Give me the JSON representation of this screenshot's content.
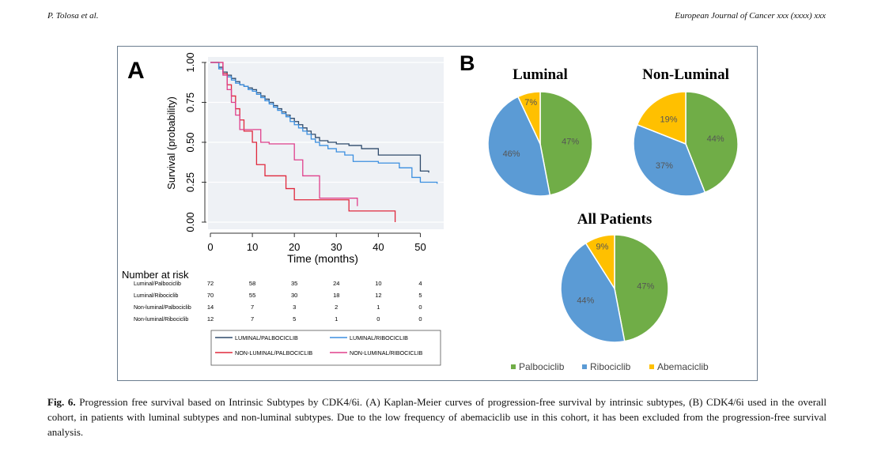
{
  "header": {
    "author": "P. Tolosa et al.",
    "journal": "European Journal of Cancer xxx (xxxx) xxx"
  },
  "panel_a": {
    "label": "A",
    "ylabel": "Survival (probability)",
    "xlabel": "Time (months)",
    "yticks": [
      "0.00",
      "0.25",
      "0.50",
      "0.75",
      "1.00"
    ],
    "xticks": [
      "0",
      "10",
      "20",
      "30",
      "40",
      "50"
    ],
    "risk_title": "Number at risk",
    "risk_rows": [
      {
        "label": "Luminal/Palbociclib",
        "values": [
          "72",
          "58",
          "35",
          "24",
          "10",
          "4"
        ]
      },
      {
        "label": "Luminal/Ribociclib",
        "values": [
          "70",
          "55",
          "30",
          "18",
          "12",
          "5"
        ]
      },
      {
        "label": "Non-luminal/Palbociclib",
        "values": [
          "14",
          "7",
          "3",
          "2",
          "1",
          "0"
        ]
      },
      {
        "label": "Non-luminal/Ribociclib",
        "values": [
          "12",
          "7",
          "5",
          "1",
          "0",
          "0"
        ]
      }
    ],
    "legend": [
      {
        "label": "LUMINAL/PALBOCICLIB",
        "color": "#2e4a6b"
      },
      {
        "label": "LUMINAL/RIBOCICLIB",
        "color": "#3b8fe0"
      },
      {
        "label": "NON-LUMINAL/PALBOCICLIB",
        "color": "#e0283c"
      },
      {
        "label": "NON-LUMINAL/RIBOCICLIB",
        "color": "#e0408c"
      }
    ]
  },
  "panel_b": {
    "label": "B",
    "colors": {
      "palbociclib": "#70ad47",
      "ribociclib": "#5b9bd5",
      "abemaciclib": "#ffc000"
    },
    "legend": [
      "Palbociclib",
      "Ribociclib",
      "Abemaciclib"
    ],
    "pies": [
      {
        "title": "Luminal",
        "slices": [
          {
            "label": "47%",
            "value": 47
          },
          {
            "label": "46%",
            "value": 46
          },
          {
            "label": "7%",
            "value": 7
          }
        ]
      },
      {
        "title": "Non-Luminal",
        "slices": [
          {
            "label": "44%",
            "value": 44
          },
          {
            "label": "37%",
            "value": 37
          },
          {
            "label": "19%",
            "value": 19
          }
        ]
      },
      {
        "title": "All Patients",
        "slices": [
          {
            "label": "47%",
            "value": 47
          },
          {
            "label": "44%",
            "value": 44
          },
          {
            "label": "9%",
            "value": 9
          }
        ]
      }
    ]
  },
  "chart_data": [
    {
      "type": "line",
      "xlabel": "Time (months)",
      "ylabel": "Survival (probability)",
      "xlim": [
        0,
        55
      ],
      "ylim": [
        0,
        1
      ],
      "series": [
        {
          "name": "LUMINAL/PALBOCICLIB",
          "x": [
            0,
            2,
            3,
            4,
            5,
            6,
            7,
            8,
            9,
            10,
            11,
            12,
            13,
            14,
            15,
            16,
            17,
            18,
            19,
            20,
            21,
            22,
            23,
            24,
            25,
            26,
            28,
            30,
            33,
            36,
            40,
            50,
            52
          ],
          "y": [
            1.0,
            0.97,
            0.94,
            0.92,
            0.9,
            0.88,
            0.86,
            0.85,
            0.84,
            0.83,
            0.81,
            0.79,
            0.77,
            0.75,
            0.73,
            0.71,
            0.69,
            0.67,
            0.65,
            0.63,
            0.61,
            0.59,
            0.57,
            0.55,
            0.53,
            0.51,
            0.5,
            0.49,
            0.48,
            0.46,
            0.42,
            0.32,
            0.31
          ]
        },
        {
          "name": "LUMINAL/RIBOCICLIB",
          "x": [
            0,
            2,
            3,
            4,
            5,
            6,
            7,
            8,
            9,
            10,
            11,
            12,
            13,
            14,
            15,
            16,
            17,
            18,
            19,
            20,
            21,
            22,
            23,
            24,
            25,
            26,
            28,
            30,
            32,
            34,
            40,
            45,
            48,
            50,
            54
          ],
          "y": [
            1.0,
            0.96,
            0.93,
            0.91,
            0.89,
            0.87,
            0.86,
            0.85,
            0.83,
            0.82,
            0.8,
            0.78,
            0.76,
            0.74,
            0.72,
            0.7,
            0.68,
            0.66,
            0.63,
            0.61,
            0.59,
            0.57,
            0.55,
            0.52,
            0.5,
            0.48,
            0.46,
            0.44,
            0.42,
            0.38,
            0.37,
            0.34,
            0.28,
            0.25,
            0.24
          ]
        },
        {
          "name": "NON-LUMINAL/PALBOCICLIB",
          "x": [
            0,
            3,
            4,
            5,
            6,
            7,
            8,
            10,
            11,
            13,
            18,
            20,
            21,
            33,
            43,
            44
          ],
          "y": [
            1.0,
            0.93,
            0.86,
            0.79,
            0.71,
            0.64,
            0.57,
            0.5,
            0.36,
            0.29,
            0.21,
            0.14,
            0.14,
            0.07,
            0.07,
            0.0
          ]
        },
        {
          "name": "NON-LUMINAL/RIBOCICLIB",
          "x": [
            0,
            3,
            4,
            5,
            6,
            7,
            12,
            14,
            20,
            22,
            26,
            33,
            35
          ],
          "y": [
            1.0,
            0.92,
            0.83,
            0.75,
            0.67,
            0.58,
            0.5,
            0.49,
            0.39,
            0.29,
            0.15,
            0.15,
            0.1
          ]
        }
      ]
    },
    {
      "type": "pie",
      "title": "Luminal",
      "categories": [
        "Palbociclib",
        "Ribociclib",
        "Abemaciclib"
      ],
      "values": [
        47,
        46,
        7
      ]
    },
    {
      "type": "pie",
      "title": "Non-Luminal",
      "categories": [
        "Palbociclib",
        "Ribociclib",
        "Abemaciclib"
      ],
      "values": [
        44,
        37,
        19
      ]
    },
    {
      "type": "pie",
      "title": "All Patients",
      "categories": [
        "Palbociclib",
        "Ribociclib",
        "Abemaciclib"
      ],
      "values": [
        47,
        44,
        9
      ]
    }
  ],
  "caption": {
    "label": "Fig. 6.",
    "title": "Progression free survival based on Intrinsic Subtypes by CDK4/6i.",
    "text": "(A) Kaplan-Meier curves of progression-free survival by intrinsic subtypes, (B) CDK4/6i used in the overall cohort, in patients with luminal subtypes and non-luminal subtypes. Due to the low frequency of abemaciclib use in this cohort, it has been excluded from the progression-free survival analysis."
  }
}
